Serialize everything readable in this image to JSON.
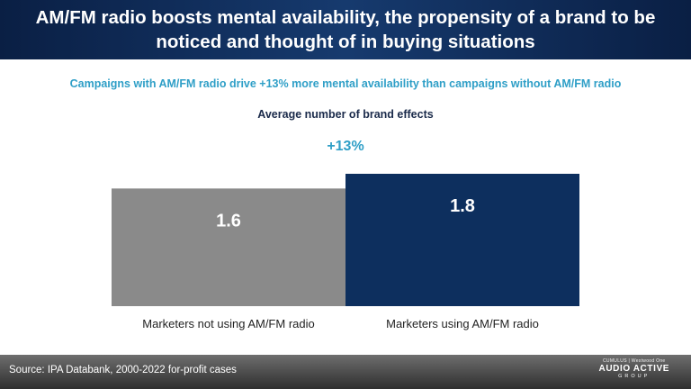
{
  "header": {
    "title": "AM/FM radio boosts mental availability, the propensity of a brand to be noticed and thought of in buying situations"
  },
  "subtitle": "Campaigns with AM/FM radio drive +13% more mental availability than campaigns without AM/FM radio",
  "growth_label": "+13%",
  "chart_data": {
    "type": "bar",
    "title": "Average number of brand effects",
    "categories": [
      "Marketers not using AM/FM radio",
      "Marketers using AM/FM radio"
    ],
    "values": [
      1.6,
      1.8
    ],
    "value_labels": [
      "1.6",
      "1.8"
    ],
    "colors": [
      "#8a8a8a",
      "#0d2f5e"
    ],
    "ylim": [
      0,
      1.8
    ],
    "grid": false,
    "legend": "none"
  },
  "footer": {
    "source": "Source: IPA Databank, 2000-2022 for-profit cases",
    "brand_top": "CUMULUS | Westwood One",
    "brand_main": "AUDIO ACTIVE",
    "brand_sub": "GROUP"
  },
  "colors": {
    "header_bg": "#0a1f44",
    "accent": "#2f9fc7",
    "bar_without": "#8a8a8a",
    "bar_with": "#0d2f5e"
  }
}
